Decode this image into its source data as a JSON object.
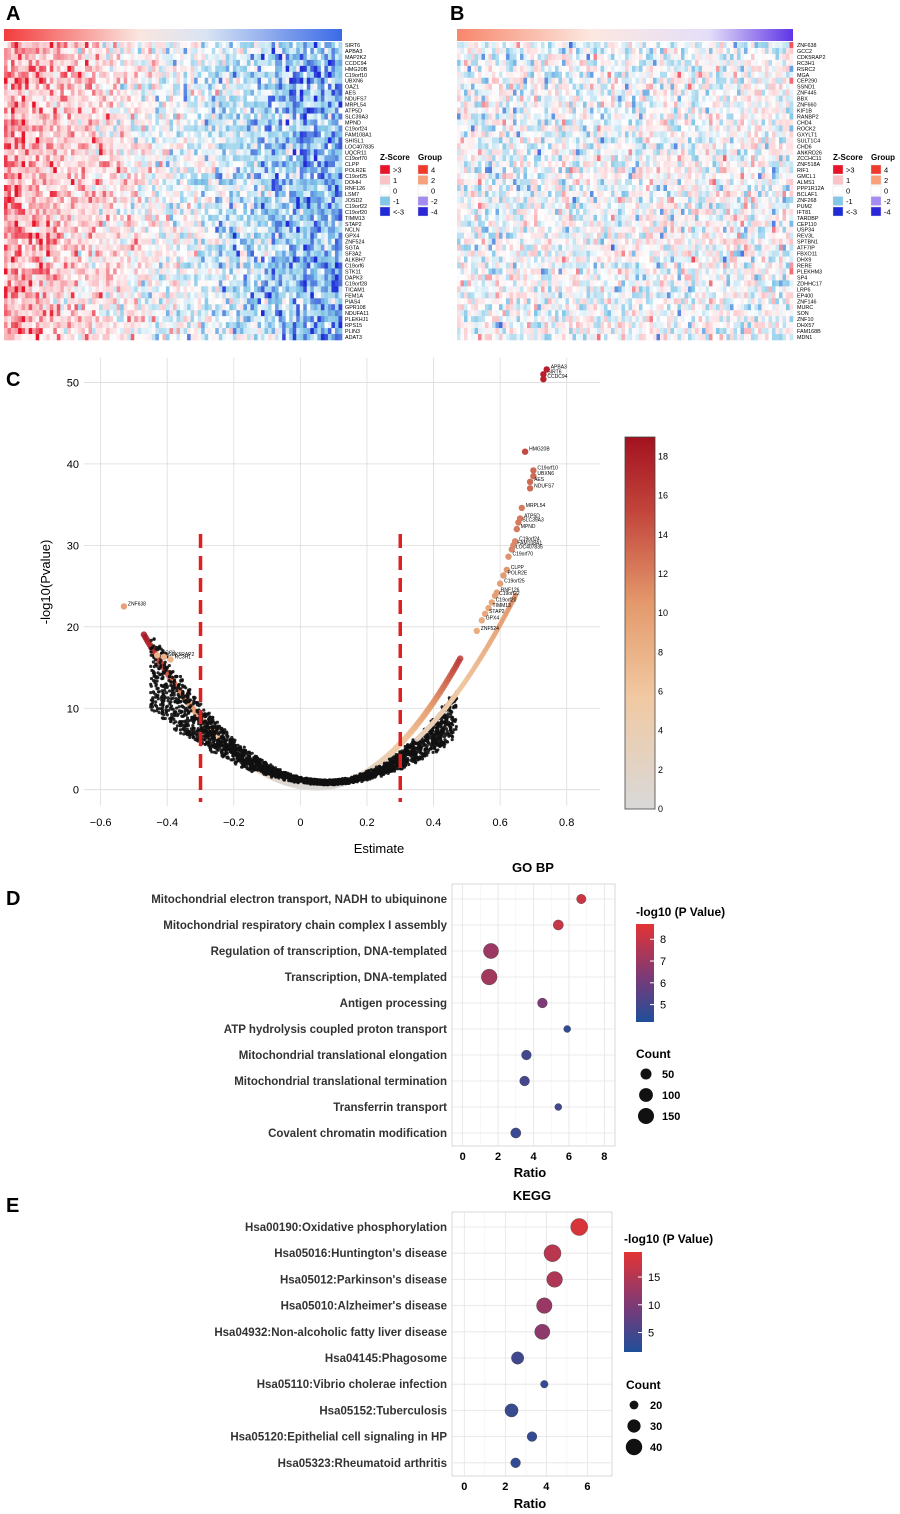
{
  "panel_labels": [
    "A",
    "B",
    "C",
    "D",
    "E"
  ],
  "chart_data": [
    {
      "type": "heatmap",
      "panel": "A",
      "genes": [
        "SIRT6",
        "APBA3",
        "MAP2K2",
        "CCDC94",
        "HMG20B",
        "C19orf10",
        "UBXN6",
        "OAZ1",
        "AES",
        "NDUFS7",
        "MRPL54",
        "ATP5D",
        "SLC39A3",
        "MPND",
        "C19orf24",
        "FAM108A1",
        "SHISL1",
        "LOC407835",
        "UQCR11",
        "C19orf70",
        "CLPP",
        "POLR2E",
        "C19orf25",
        "DOHH",
        "RNF126",
        "LSM7",
        "JOSD2",
        "C19orf22",
        "C19orf20",
        "TIMM13",
        "STAP2",
        "NCLN",
        "GPX4",
        "ZNF524",
        "SGTA",
        "SF3A2",
        "ALKBH7",
        "C19orf6",
        "STK11",
        "DAPK3",
        "C19orf28",
        "TICAM1",
        "FEM1A",
        "PIAS4",
        "GPR108",
        "NDUFA11",
        "PLEKHJ1",
        "RPS15",
        "PLIN3",
        "ADAT3"
      ],
      "legend": {
        "zscore_title": "Z-Score",
        "zscore_labels": [
          ">3",
          "1",
          "0",
          "-1",
          "<-3"
        ],
        "zscore_colors": [
          "#e8152a",
          "#f9c4c8",
          "#ffffff",
          "#84c8e8",
          "#1f2bd6"
        ],
        "group_title": "Group",
        "group_labels": [
          "4",
          "2",
          "0",
          "-2",
          "-4"
        ],
        "group_colors": [
          "#f03a2e",
          "#f7a07a",
          "#ffffff",
          "#a38bf0",
          "#2b27d8"
        ]
      },
      "group_bar_colors": [
        "#f23c3c",
        "#fbe6e0",
        "#d8e4f4",
        "#3a6ae6"
      ]
    },
    {
      "type": "heatmap",
      "panel": "B",
      "genes": [
        "ZNF638",
        "GCC2",
        "CDK5RAP2",
        "RC3H1",
        "RSRC2",
        "MGA",
        "CEP290",
        "SSND1",
        "ZNF445",
        "BBX",
        "ZNF660",
        "KIF1B",
        "RANBP2",
        "CHD4",
        "ROCK2",
        "GXYLT1",
        "SULT1C4",
        "CHD6",
        "ANKRD26",
        "ZCCHC11",
        "ZNF518A",
        "RIF1",
        "GMCL1",
        "ALMS1",
        "PPP1R12A",
        "BCLAF1",
        "ZNF268",
        "PUM2",
        "IFT81",
        "TARDBP",
        "CEP110",
        "USP34",
        "REV3L",
        "SPTBN1",
        "ATF7IP",
        "FBXO11",
        "DHX9",
        "RERE",
        "PLEKHM3",
        "SP4",
        "ZDHHC17",
        "LRP6",
        "EP400",
        "ZNF146",
        "MURC",
        "SON",
        "ZNF10",
        "DHX57",
        "FAM168B",
        "MDN1"
      ],
      "legend": {
        "zscore_title": "Z-Score",
        "zscore_labels": [
          ">3",
          "1",
          "0",
          "-1",
          "<-3"
        ],
        "zscore_colors": [
          "#e8152a",
          "#f9c4c8",
          "#ffffff",
          "#84c8e8",
          "#1f2bd6"
        ],
        "group_title": "Group",
        "group_labels": [
          "4",
          "2",
          "0",
          "-2",
          "-4"
        ],
        "group_colors": [
          "#f03a2e",
          "#f7a07a",
          "#ffffff",
          "#a38bf0",
          "#2b27d8"
        ]
      },
      "group_bar_colors": [
        "#f7866c",
        "#fce8e0",
        "#e4def8",
        "#5f35e6"
      ]
    },
    {
      "type": "scatter",
      "panel": "C",
      "title": "",
      "xlabel": "Estimate",
      "ylabel": "-log10(Pvalue)",
      "xlim": [
        -0.65,
        0.9
      ],
      "ylim": [
        -2,
        53
      ],
      "xticks": [
        -0.6,
        -0.4,
        -0.2,
        0,
        0.2,
        0.4,
        0.6,
        0.8
      ],
      "xtick_labels": [
        "−0.6",
        "−0.4",
        "−0.2",
        "0",
        "0.2",
        "0.4",
        "0.6",
        "0.8"
      ],
      "yticks": [
        0,
        10,
        20,
        30,
        40,
        50
      ],
      "ytick_labels": [
        "0",
        "10",
        "20",
        "30",
        "40",
        "50"
      ],
      "thresholds": [
        -0.3,
        0.3
      ],
      "colorbar": {
        "min": 0,
        "max": 19,
        "ticks": [
          0,
          2,
          4,
          6,
          8,
          10,
          12,
          14,
          16,
          18
        ],
        "tick_labels": [
          "0",
          "2",
          "4",
          "6",
          "8",
          "10",
          "12",
          "14",
          "16",
          "18"
        ]
      },
      "labeled_points": [
        {
          "x": 0.73,
          "y": 51.0,
          "label": "SIRT6",
          "color": "#b81e2c"
        },
        {
          "x": 0.74,
          "y": 51.6,
          "label": "APBA3",
          "color": "#b81e2c"
        },
        {
          "x": 0.73,
          "y": 50.4,
          "label": "CCDC94",
          "color": "#b81e2c"
        },
        {
          "x": 0.675,
          "y": 41.5,
          "label": "HMG20B",
          "color": "#c14a45"
        },
        {
          "x": 0.7,
          "y": 39.2,
          "label": "C19orf10",
          "color": "#cc6a56"
        },
        {
          "x": 0.7,
          "y": 38.5,
          "label": "UBXN6",
          "color": "#cc6a56"
        },
        {
          "x": 0.69,
          "y": 37.8,
          "label": "AES",
          "color": "#cc6a56"
        },
        {
          "x": 0.69,
          "y": 37.0,
          "label": "NDUFS7",
          "color": "#cc6a56"
        },
        {
          "x": 0.665,
          "y": 34.6,
          "label": "MRPL54",
          "color": "#d47a5f"
        },
        {
          "x": 0.66,
          "y": 33.3,
          "label": "ATP5D",
          "color": "#d47a5f"
        },
        {
          "x": 0.655,
          "y": 32.8,
          "label": "SLC39A3",
          "color": "#d47a5f"
        },
        {
          "x": 0.65,
          "y": 32.0,
          "label": "MPND",
          "color": "#d47a5f"
        },
        {
          "x": 0.645,
          "y": 30.5,
          "label": "C19orf24",
          "color": "#d9886a"
        },
        {
          "x": 0.64,
          "y": 30.0,
          "label": "FAM108A1",
          "color": "#d9886a"
        },
        {
          "x": 0.635,
          "y": 29.5,
          "label": "LOC407835",
          "color": "#d9886a"
        },
        {
          "x": 0.625,
          "y": 28.6,
          "label": "C19orf70",
          "color": "#de9470"
        },
        {
          "x": 0.62,
          "y": 27.0,
          "label": "CLPP",
          "color": "#e09a72"
        },
        {
          "x": 0.61,
          "y": 26.3,
          "label": "POLR2E",
          "color": "#e09a72"
        },
        {
          "x": 0.6,
          "y": 25.3,
          "label": "C19orf25",
          "color": "#e3a076"
        },
        {
          "x": 0.59,
          "y": 24.2,
          "label": "RNF126",
          "color": "#e3a076"
        },
        {
          "x": 0.585,
          "y": 23.8,
          "label": "C19orf22",
          "color": "#e3a076"
        },
        {
          "x": 0.575,
          "y": 23.0,
          "label": "C19orf20",
          "color": "#e6a87c"
        },
        {
          "x": 0.565,
          "y": 22.3,
          "label": "TIMM13",
          "color": "#e6a87c"
        },
        {
          "x": 0.555,
          "y": 21.6,
          "label": "STAP2",
          "color": "#e6a87c"
        },
        {
          "x": 0.545,
          "y": 20.8,
          "label": "GPX4",
          "color": "#e8ad80"
        },
        {
          "x": 0.53,
          "y": 19.5,
          "label": "ZNF524",
          "color": "#e8ad80"
        },
        {
          "x": -0.53,
          "y": 22.5,
          "label": "ZNF638",
          "color": "#e8a07a"
        },
        {
          "x": -0.43,
          "y": 16.5,
          "label": "GCC2",
          "color": "#ecb48a"
        },
        {
          "x": -0.41,
          "y": 16.3,
          "label": "CDK5RAP2",
          "color": "#ecb48a"
        },
        {
          "x": -0.39,
          "y": 16.0,
          "label": "RC3H1",
          "color": "#ecb48a"
        }
      ]
    },
    {
      "type": "scatter",
      "panel": "D",
      "title": "GO BP",
      "xlabel": "Ratio",
      "ylabel": "",
      "xlim": [
        -0.6,
        8.6
      ],
      "xticks": [
        0,
        2,
        4,
        6,
        8
      ],
      "xtick_labels": [
        "0",
        "2",
        "4",
        "6",
        "8"
      ],
      "categories": [
        "Mitochondrial electron transport, NADH to ubiquinone",
        "Mitochondrial respiratory chain complex I assembly",
        "Regulation of transcription, DNA-templated",
        "Transcription, DNA-templated",
        "Antigen processing",
        "ATP hydrolysis coupled proton transport",
        "Mitochondrial translational elongation",
        "Mitochondrial translational termination",
        "Transferrin transport",
        "Covalent chromatin modification"
      ],
      "ratio": [
        6.7,
        5.4,
        1.6,
        1.5,
        4.5,
        5.9,
        3.6,
        3.5,
        5.4,
        3.0
      ],
      "count": [
        30,
        40,
        130,
        145,
        35,
        10,
        35,
        35,
        10,
        40
      ],
      "neglog10p": [
        8.2,
        8.0,
        7.0,
        7.2,
        6.3,
        4.6,
        5.0,
        5.0,
        5.0,
        4.8
      ],
      "color_legend": {
        "title": "-log10 (P Value)",
        "min": 4.2,
        "max": 8.7,
        "ticks": [
          5,
          6,
          7,
          8
        ],
        "tick_labels": [
          "5",
          "6",
          "7",
          "8"
        ]
      },
      "size_legend": {
        "title": "Count",
        "values": [
          50,
          100,
          150
        ],
        "labels": [
          "50",
          "100",
          "150"
        ]
      }
    },
    {
      "type": "scatter",
      "panel": "E",
      "title": "KEGG",
      "xlabel": "Ratio",
      "ylabel": "",
      "xlim": [
        -0.6,
        7.2
      ],
      "xticks": [
        0,
        2,
        4,
        6
      ],
      "xtick_labels": [
        "0",
        "2",
        "4",
        "6"
      ],
      "categories": [
        "Hsa00190:Oxidative phosphorylation",
        "Hsa05016:Huntington's disease",
        "Hsa05012:Parkinson's disease",
        "Hsa05010:Alzheimer's disease",
        "Hsa04932:Non-alcoholic fatty liver disease",
        "Hsa04145:Phagosome",
        "Hsa05110:Vibrio cholerae infection",
        "Hsa05152:Tuberculosis",
        "Hsa05120:Epithelial cell signaling in HP",
        "Hsa05323:Rheumatoid arthritis"
      ],
      "ratio": [
        5.6,
        4.3,
        4.4,
        3.9,
        3.8,
        2.6,
        3.9,
        2.3,
        3.3,
        2.5
      ],
      "count": [
        42,
        42,
        38,
        37,
        36,
        28,
        18,
        30,
        22,
        22
      ],
      "neglog10p": [
        18.5,
        15.5,
        14.5,
        12.5,
        11.5,
        4.5,
        3.5,
        4.0,
        3.5,
        3.0
      ],
      "color_legend": {
        "title": "-log10 (P Value)",
        "min": 1.5,
        "max": 19.5,
        "ticks": [
          5,
          10,
          15
        ],
        "tick_labels": [
          "5",
          "10",
          "15"
        ]
      },
      "size_legend": {
        "title": "Count",
        "values": [
          20,
          30,
          40
        ],
        "labels": [
          "20",
          "30",
          "40"
        ]
      }
    }
  ]
}
